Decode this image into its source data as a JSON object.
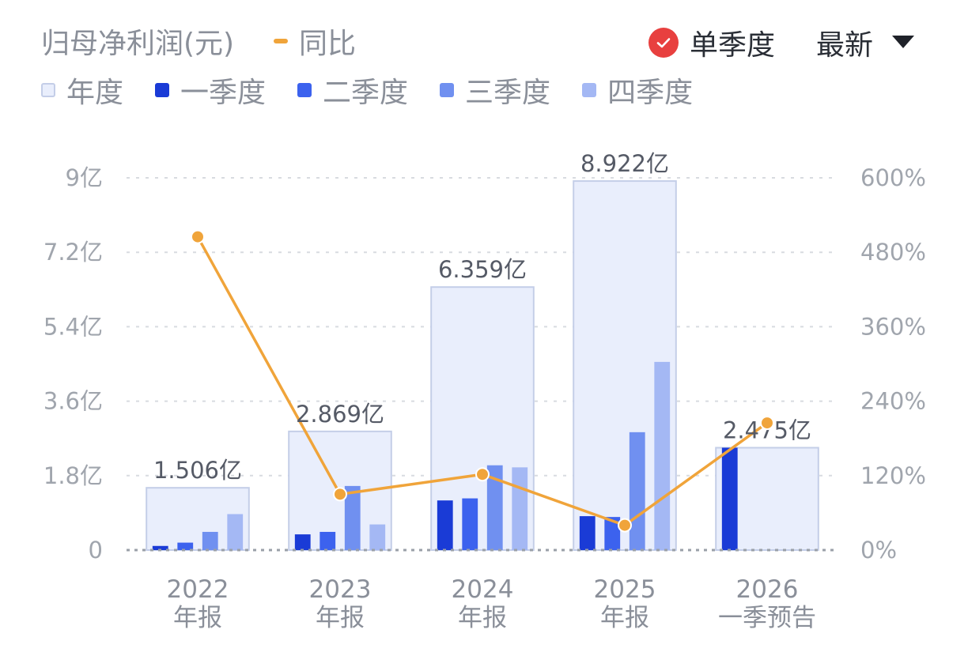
{
  "header": {
    "title": "归母净利润(元)",
    "yoy_label": "同比",
    "toggle_label": "单季度",
    "dropdown_label": "最新"
  },
  "legend": [
    {
      "label": "年度",
      "color": "#e9eefc",
      "border": "#c4cee8"
    },
    {
      "label": "一季度",
      "color": "#1a3bd6"
    },
    {
      "label": "二季度",
      "color": "#3c62ee"
    },
    {
      "label": "三季度",
      "color": "#7090f0"
    },
    {
      "label": "四季度",
      "color": "#a4b8f4"
    }
  ],
  "colors": {
    "annual_fill": "#e9eefc",
    "annual_stroke": "#c4cee8",
    "yoy_line": "#f0a43a",
    "check": "#e8403f",
    "grid": "#d8dbe0",
    "baseline": "#9aa0a8"
  },
  "icons": {
    "toggle": "check-circle-icon",
    "dropdown": "caret-down-icon"
  },
  "chart_data": {
    "type": "bar",
    "categories": [
      "2022\n年报",
      "2023\n年报",
      "2024\n年报",
      "2025\n年报",
      "2026\n一季预告"
    ],
    "left_axis": {
      "ticks": [
        "0",
        "1.8亿",
        "3.6亿",
        "5.4亿",
        "7.2亿",
        "9亿"
      ],
      "ylim": [
        0,
        9
      ]
    },
    "right_axis": {
      "ticks": [
        "0%",
        "120%",
        "240%",
        "360%",
        "480%",
        "600%"
      ],
      "ylim": [
        0,
        600
      ]
    },
    "annual": {
      "values": [
        1.506,
        2.869,
        6.359,
        8.922,
        2.475
      ],
      "labels": [
        "1.506亿",
        "2.869亿",
        "6.359亿",
        "8.922亿",
        "2.475亿"
      ]
    },
    "series": [
      {
        "name": "一季度",
        "values": [
          0.1,
          0.38,
          1.2,
          0.82,
          2.475
        ]
      },
      {
        "name": "二季度",
        "values": [
          0.18,
          0.44,
          1.25,
          0.8,
          null
        ]
      },
      {
        "name": "三季度",
        "values": [
          0.44,
          1.55,
          2.05,
          2.85,
          null
        ]
      },
      {
        "name": "四季度",
        "values": [
          0.87,
          0.62,
          2.0,
          4.55,
          null
        ]
      }
    ],
    "yoy": {
      "name": "同比",
      "values": [
        505,
        90,
        122,
        40,
        205
      ]
    },
    "grid": true
  }
}
